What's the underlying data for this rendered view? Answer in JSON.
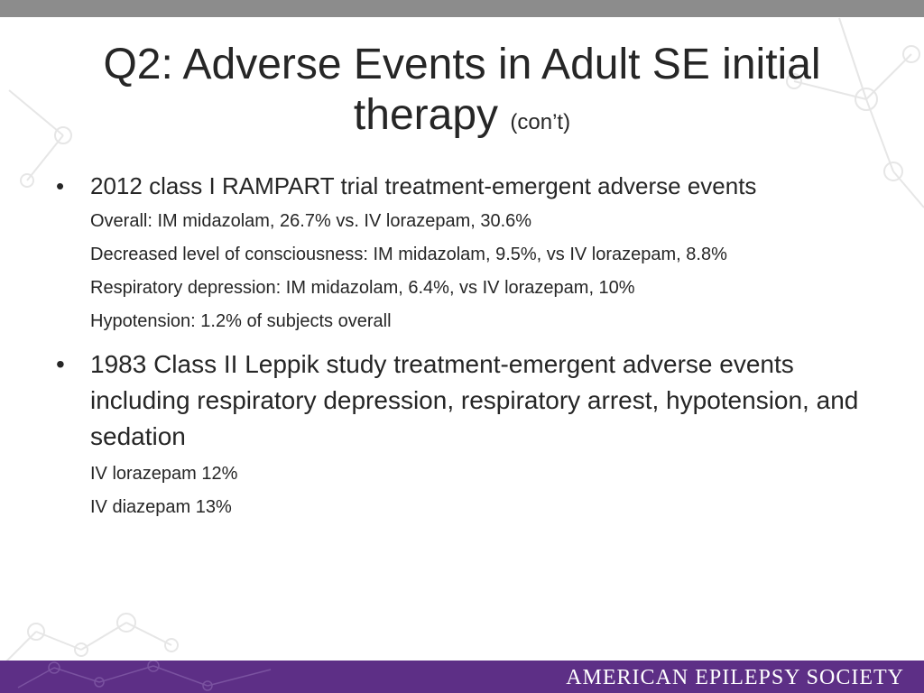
{
  "slide": {
    "title": "Q2: Adverse Events in Adult SE initial therapy",
    "title_suffix": "(con’t)",
    "bullets": [
      {
        "text": "2012 class I RAMPART trial treatment-emergent adverse events",
        "subitems": [
          "Overall: IM midazolam, 26.7% vs. IV lorazepam, 30.6%",
          "Decreased level of consciousness: IM midazolam, 9.5%, vs IV lorazepam, 8.8%",
          "Respiratory depression: IM midazolam, 6.4%, vs IV lorazepam, 10%",
          "Hypotension: 1.2% of subjects overall"
        ]
      },
      {
        "text": "1983 Class II Leppik study treatment-emergent adverse events including respiratory depression, respiratory arrest, hypotension, and sedation",
        "subitems": [
          "IV lorazepam 12%",
          "IV diazepam 13%"
        ]
      }
    ],
    "bullet_glyph": "•"
  },
  "footer": {
    "organization": "AMERICAN EPILEPSY SOCIETY"
  },
  "colors": {
    "top_bar": "#8c8c8c",
    "footer_bar": "#5d2f86",
    "text": "#262626",
    "decor": "#e3e3e3"
  }
}
